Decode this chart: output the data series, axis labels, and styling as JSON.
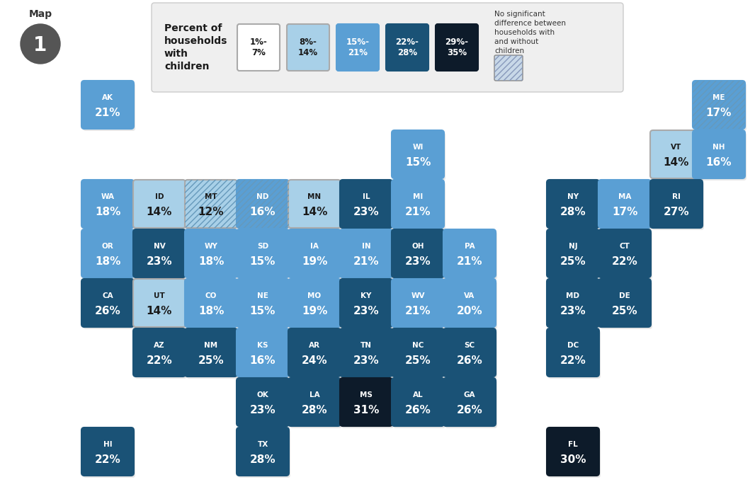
{
  "legend_colors": [
    "#ffffff",
    "#a8d0e8",
    "#5a9fd4",
    "#1a5276",
    "#0d1b2a"
  ],
  "legend_border_colors": [
    "#aaaaaa",
    "#aaaaaa",
    "#5a9fd4",
    "#1a5276",
    "#0d1b2a"
  ],
  "legend_labels": [
    "1%-\n7%",
    "8%-\n14%",
    "15%-\n21%",
    "22%-\n28%",
    "29%-\n35%"
  ],
  "no_sig_text": "No significant\ndifference between\nhouseholds with\nand without\nchildren",
  "states": [
    {
      "abbr": "AK",
      "pct": "21%",
      "col": 1,
      "row": 1,
      "color": "#5a9fd4",
      "hatched": false
    },
    {
      "abbr": "HI",
      "pct": "22%",
      "col": 1,
      "row": 8,
      "color": "#1a5276",
      "hatched": false
    },
    {
      "abbr": "ME",
      "pct": "17%",
      "col": 13,
      "row": 1,
      "color": "#5a9fd4",
      "hatched": true
    },
    {
      "abbr": "VT",
      "pct": "14%",
      "col": 12,
      "row": 2,
      "color": "#a8d0e8",
      "hatched": false
    },
    {
      "abbr": "NH",
      "pct": "16%",
      "col": 13,
      "row": 2,
      "color": "#5a9fd4",
      "hatched": false
    },
    {
      "abbr": "WI",
      "pct": "15%",
      "col": 7,
      "row": 2,
      "color": "#5a9fd4",
      "hatched": false
    },
    {
      "abbr": "WA",
      "pct": "18%",
      "col": 1,
      "row": 3,
      "color": "#5a9fd4",
      "hatched": false
    },
    {
      "abbr": "ID",
      "pct": "14%",
      "col": 2,
      "row": 3,
      "color": "#a8d0e8",
      "hatched": false
    },
    {
      "abbr": "MT",
      "pct": "12%",
      "col": 3,
      "row": 3,
      "color": "#a8d0e8",
      "hatched": true
    },
    {
      "abbr": "ND",
      "pct": "16%",
      "col": 4,
      "row": 3,
      "color": "#5a9fd4",
      "hatched": true
    },
    {
      "abbr": "MN",
      "pct": "14%",
      "col": 5,
      "row": 3,
      "color": "#a8d0e8",
      "hatched": false
    },
    {
      "abbr": "IL",
      "pct": "23%",
      "col": 6,
      "row": 3,
      "color": "#1a5276",
      "hatched": false
    },
    {
      "abbr": "MI",
      "pct": "21%",
      "col": 7,
      "row": 3,
      "color": "#5a9fd4",
      "hatched": false
    },
    {
      "abbr": "NY",
      "pct": "28%",
      "col": 10,
      "row": 3,
      "color": "#1a5276",
      "hatched": false
    },
    {
      "abbr": "MA",
      "pct": "17%",
      "col": 11,
      "row": 3,
      "color": "#5a9fd4",
      "hatched": false
    },
    {
      "abbr": "RI",
      "pct": "27%",
      "col": 12,
      "row": 3,
      "color": "#1a5276",
      "hatched": false
    },
    {
      "abbr": "OR",
      "pct": "18%",
      "col": 1,
      "row": 4,
      "color": "#5a9fd4",
      "hatched": false
    },
    {
      "abbr": "NV",
      "pct": "23%",
      "col": 2,
      "row": 4,
      "color": "#1a5276",
      "hatched": false
    },
    {
      "abbr": "WY",
      "pct": "18%",
      "col": 3,
      "row": 4,
      "color": "#5a9fd4",
      "hatched": false
    },
    {
      "abbr": "SD",
      "pct": "15%",
      "col": 4,
      "row": 4,
      "color": "#5a9fd4",
      "hatched": false
    },
    {
      "abbr": "IA",
      "pct": "19%",
      "col": 5,
      "row": 4,
      "color": "#5a9fd4",
      "hatched": false
    },
    {
      "abbr": "IN",
      "pct": "21%",
      "col": 6,
      "row": 4,
      "color": "#5a9fd4",
      "hatched": false
    },
    {
      "abbr": "OH",
      "pct": "23%",
      "col": 7,
      "row": 4,
      "color": "#1a5276",
      "hatched": false
    },
    {
      "abbr": "PA",
      "pct": "21%",
      "col": 8,
      "row": 4,
      "color": "#5a9fd4",
      "hatched": false
    },
    {
      "abbr": "NJ",
      "pct": "25%",
      "col": 10,
      "row": 4,
      "color": "#1a5276",
      "hatched": false
    },
    {
      "abbr": "CT",
      "pct": "22%",
      "col": 11,
      "row": 4,
      "color": "#1a5276",
      "hatched": false
    },
    {
      "abbr": "CA",
      "pct": "26%",
      "col": 1,
      "row": 5,
      "color": "#1a5276",
      "hatched": false
    },
    {
      "abbr": "UT",
      "pct": "14%",
      "col": 2,
      "row": 5,
      "color": "#a8d0e8",
      "hatched": false
    },
    {
      "abbr": "CO",
      "pct": "18%",
      "col": 3,
      "row": 5,
      "color": "#5a9fd4",
      "hatched": false
    },
    {
      "abbr": "NE",
      "pct": "15%",
      "col": 4,
      "row": 5,
      "color": "#5a9fd4",
      "hatched": false
    },
    {
      "abbr": "MO",
      "pct": "19%",
      "col": 5,
      "row": 5,
      "color": "#5a9fd4",
      "hatched": false
    },
    {
      "abbr": "KY",
      "pct": "23%",
      "col": 6,
      "row": 5,
      "color": "#1a5276",
      "hatched": false
    },
    {
      "abbr": "WV",
      "pct": "21%",
      "col": 7,
      "row": 5,
      "color": "#5a9fd4",
      "hatched": false
    },
    {
      "abbr": "VA",
      "pct": "20%",
      "col": 8,
      "row": 5,
      "color": "#5a9fd4",
      "hatched": false
    },
    {
      "abbr": "MD",
      "pct": "23%",
      "col": 10,
      "row": 5,
      "color": "#1a5276",
      "hatched": false
    },
    {
      "abbr": "DE",
      "pct": "25%",
      "col": 11,
      "row": 5,
      "color": "#1a5276",
      "hatched": false
    },
    {
      "abbr": "AZ",
      "pct": "22%",
      "col": 2,
      "row": 6,
      "color": "#1a5276",
      "hatched": false
    },
    {
      "abbr": "NM",
      "pct": "25%",
      "col": 3,
      "row": 6,
      "color": "#1a5276",
      "hatched": false
    },
    {
      "abbr": "KS",
      "pct": "16%",
      "col": 4,
      "row": 6,
      "color": "#5a9fd4",
      "hatched": false
    },
    {
      "abbr": "AR",
      "pct": "24%",
      "col": 5,
      "row": 6,
      "color": "#1a5276",
      "hatched": false
    },
    {
      "abbr": "TN",
      "pct": "23%",
      "col": 6,
      "row": 6,
      "color": "#1a5276",
      "hatched": false
    },
    {
      "abbr": "NC",
      "pct": "25%",
      "col": 7,
      "row": 6,
      "color": "#1a5276",
      "hatched": false
    },
    {
      "abbr": "SC",
      "pct": "26%",
      "col": 8,
      "row": 6,
      "color": "#1a5276",
      "hatched": false
    },
    {
      "abbr": "DC",
      "pct": "22%",
      "col": 10,
      "row": 6,
      "color": "#1a5276",
      "hatched": false
    },
    {
      "abbr": "OK",
      "pct": "23%",
      "col": 4,
      "row": 7,
      "color": "#1a5276",
      "hatched": false
    },
    {
      "abbr": "LA",
      "pct": "28%",
      "col": 5,
      "row": 7,
      "color": "#1a5276",
      "hatched": false
    },
    {
      "abbr": "MS",
      "pct": "31%",
      "col": 6,
      "row": 7,
      "color": "#0d1b2a",
      "hatched": false
    },
    {
      "abbr": "AL",
      "pct": "26%",
      "col": 7,
      "row": 7,
      "color": "#1a5276",
      "hatched": false
    },
    {
      "abbr": "GA",
      "pct": "26%",
      "col": 8,
      "row": 7,
      "color": "#1a5276",
      "hatched": false
    },
    {
      "abbr": "TX",
      "pct": "28%",
      "col": 4,
      "row": 8,
      "color": "#1a5276",
      "hatched": false
    },
    {
      "abbr": "FL",
      "pct": "30%",
      "col": 10,
      "row": 8,
      "color": "#0d1b2a",
      "hatched": false
    }
  ]
}
